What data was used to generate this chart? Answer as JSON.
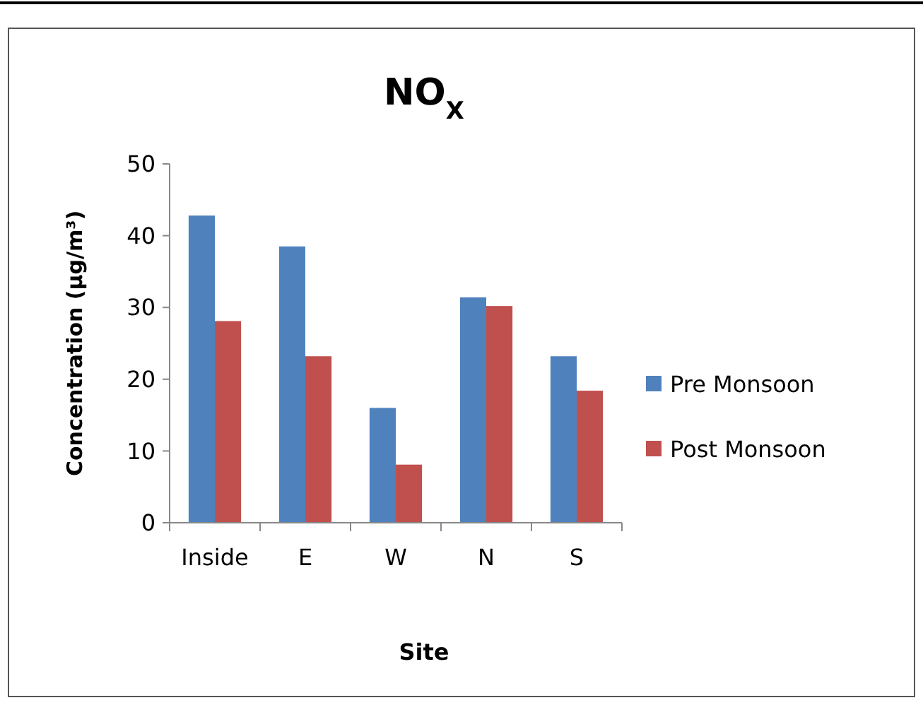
{
  "chart_data": {
    "type": "bar",
    "title": "NO$_{X}$",
    "xlabel": "Site",
    "ylabel": "Concentration (µg/m³)",
    "categories": [
      "Inside",
      "E",
      "W",
      "N",
      "S"
    ],
    "series": [
      {
        "name": "Pre Monsoon",
        "color": "#4f81bd",
        "values": [
          42.8,
          38.5,
          16.0,
          31.4,
          23.2
        ]
      },
      {
        "name": "Post Monsoon",
        "color": "#c0504d",
        "values": [
          28.1,
          23.2,
          8.1,
          30.2,
          18.4
        ]
      }
    ],
    "ylim": [
      0,
      50
    ],
    "yticks": [
      0,
      10,
      20,
      30,
      40,
      50
    ],
    "grid": false,
    "legend": "right"
  }
}
